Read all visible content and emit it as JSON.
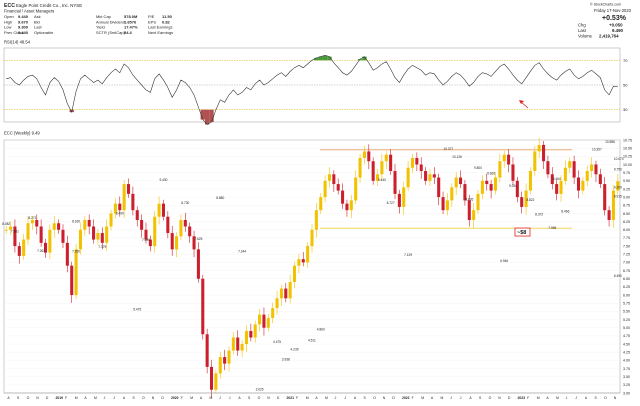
{
  "header": {
    "symbol": "ECC",
    "company": "Eagle Point Credit Co., Inc. NYSE",
    "sector": "Financial / Asset Managers",
    "brand": "© StockCharts.com",
    "date": "Friday 17-Nov-2023",
    "change_pct": "+0.53%",
    "change_label": "Chg",
    "change_value": "+0.050",
    "last_label": "Last",
    "last_value": "9.490",
    "volume_label": "Volume",
    "volume_value": "2,419,764"
  },
  "quote_table": [
    {
      "k1": "Open",
      "v1": "9.440",
      "k2": "Ask",
      "v2": "",
      "k3": "Mkt Cap",
      "v3": "578.0M",
      "k4": "P/E",
      "v4": "11.50"
    },
    {
      "k1": "High",
      "v1": "9.670",
      "k2": "Bid",
      "v2": "",
      "k3": "Annual Dividend",
      "v3": "1.6576",
      "k4": "EPS",
      "v4": "0.82"
    },
    {
      "k1": "Low",
      "v1": "9.300",
      "k2": "Last",
      "v2": "",
      "k3": "Yield",
      "v3": "17.47%",
      "k4": "Last Earnings",
      "v4": ""
    },
    {
      "k1": "Prev Close",
      "v1": "9.440",
      "k2": "Optionable",
      "v2": "",
      "k3": "SCTR (SmlCap)",
      "v3": "54.4",
      "k4": "Next Earnings",
      "v4": ""
    }
  ],
  "rsi_panel": {
    "label": "RSI(14) 48.54",
    "ticks": [
      "70",
      "50",
      "30"
    ]
  },
  "price_panel": {
    "label": "ECC (Weekly) 9.49",
    "target_label": "~$8"
  },
  "colors": {
    "up": "#f2c200",
    "down": "#cc1f2d",
    "resistance": "#e8a060",
    "support": "#f0d040",
    "rsi_line": "#333333",
    "rsi_overbought_fill": "#4a9a3a",
    "rsi_oversold_fill": "#b05050",
    "target": "#e02020"
  },
  "chart_data": {
    "type": "candlestick",
    "price_ylim": [
      3.0,
      10.75
    ],
    "price_ticks": [
      "10.75",
      "10.50",
      "10.25",
      "10.00",
      "9.75",
      "9.50",
      "9.25",
      "9.00",
      "8.75",
      "8.50",
      "8.25",
      "8.00",
      "7.75",
      "7.50",
      "7.25",
      "7.00",
      "6.75",
      "6.50",
      "6.25",
      "6.00",
      "5.75",
      "5.50",
      "5.25",
      "5.00",
      "4.75",
      "4.50",
      "4.25",
      "4.00",
      "3.75",
      "3.50",
      "3.25",
      "3.00"
    ],
    "closes": [
      8.0,
      8.1,
      7.5,
      7.2,
      7.7,
      8.2,
      8.3,
      8.1,
      7.6,
      7.3,
      8.0,
      8.2,
      8.0,
      7.6,
      6.9,
      6.0,
      7.4,
      8.0,
      8.3,
      8.1,
      7.7,
      7.9,
      7.6,
      8.1,
      8.5,
      8.8,
      8.6,
      9.4,
      9.1,
      8.6,
      8.3,
      8.0,
      7.7,
      7.5,
      8.4,
      8.8,
      8.4,
      7.9,
      7.4,
      7.8,
      8.3,
      8.1,
      7.8,
      7.4,
      6.5,
      4.8,
      3.8,
      3.1,
      3.6,
      4.1,
      3.9,
      4.3,
      4.7,
      4.3,
      4.5,
      4.9,
      4.7,
      5.1,
      5.4,
      5.0,
      5.3,
      5.6,
      5.9,
      6.2,
      5.9,
      6.4,
      6.9,
      7.1,
      7.0,
      7.5,
      8.0,
      8.6,
      9.0,
      9.5,
      9.7,
      9.4,
      9.2,
      8.8,
      8.6,
      8.9,
      9.6,
      10.2,
      10.4,
      10.1,
      9.5,
      9.7,
      10.1,
      10.3,
      9.8,
      9.1,
      8.7,
      9.3,
      9.9,
      10.2,
      10.0,
      9.8,
      9.5,
      9.7,
      9.6,
      9.0,
      8.6,
      8.9,
      9.3,
      9.6,
      9.4,
      8.9,
      8.3,
      8.6,
      9.1,
      9.5,
      9.4,
      9.2,
      9.6,
      10.1,
      10.3,
      10.0,
      9.5,
      9.0,
      8.7,
      9.2,
      9.8,
      10.4,
      10.6,
      10.1,
      9.7,
      9.4,
      9.1,
      9.5,
      9.9,
      10.1,
      9.6,
      9.2,
      9.5,
      9.8,
      10.0,
      9.7,
      9.4,
      8.6,
      8.3,
      9.2,
      9.49
    ],
    "annotations": [
      {
        "text": "8.271",
        "x": 6,
        "y": 8.27
      },
      {
        "text": "7.263",
        "x": 8,
        "y": 7.26
      },
      {
        "text": "7.861",
        "x": 2,
        "y": 7.86
      },
      {
        "text": "8.082",
        "x": 0,
        "y": 8.08
      },
      {
        "text": "8.160",
        "x": 16,
        "y": 8.16
      },
      {
        "text": "7.250",
        "x": 16,
        "y": 7.25
      },
      {
        "text": "8.400",
        "x": 26,
        "y": 8.4
      },
      {
        "text": "7.379",
        "x": 22,
        "y": 7.38
      },
      {
        "text": "7.596",
        "x": 32,
        "y": 7.6
      },
      {
        "text": "9.430",
        "x": 36,
        "y": 9.43
      },
      {
        "text": "8.730",
        "x": 41,
        "y": 8.73
      },
      {
        "text": "7.625",
        "x": 44,
        "y": 7.62
      },
      {
        "text": "7.244",
        "x": 54,
        "y": 7.24
      },
      {
        "text": "8.880",
        "x": 49,
        "y": 8.88
      },
      {
        "text": "5.475",
        "x": 30,
        "y": 5.47
      },
      {
        "text": "4.475",
        "x": 62,
        "y": 4.47
      },
      {
        "text": "4.511",
        "x": 70,
        "y": 4.51
      },
      {
        "text": "3.938",
        "x": 64,
        "y": 3.94
      },
      {
        "text": "3.025",
        "x": 58,
        "y": 3.02
      },
      {
        "text": "4.239",
        "x": 66,
        "y": 4.24
      },
      {
        "text": "4.860",
        "x": 72,
        "y": 4.86
      },
      {
        "text": "9.440",
        "x": 86,
        "y": 9.44
      },
      {
        "text": "8.727",
        "x": 88,
        "y": 8.73
      },
      {
        "text": "7.129",
        "x": 92,
        "y": 7.13
      },
      {
        "text": "10.377",
        "x": 101,
        "y": 10.38
      },
      {
        "text": "10.126",
        "x": 103,
        "y": 10.13
      },
      {
        "text": "9.800",
        "x": 108,
        "y": 9.8
      },
      {
        "text": "9.626",
        "x": 111,
        "y": 9.63
      },
      {
        "text": "8.826",
        "x": 106,
        "y": 8.83
      },
      {
        "text": "6.946",
        "x": 114,
        "y": 6.95
      },
      {
        "text": "9.254",
        "x": 116,
        "y": 9.25
      },
      {
        "text": "8.822",
        "x": 120,
        "y": 8.82
      },
      {
        "text": "9.464",
        "x": 126,
        "y": 9.46
      },
      {
        "text": "8.466",
        "x": 128,
        "y": 8.47
      },
      {
        "text": "8.372",
        "x": 122,
        "y": 8.37
      },
      {
        "text": "7.965",
        "x": 125,
        "y": 7.96
      },
      {
        "text": "10.357",
        "x": 135,
        "y": 10.36
      },
      {
        "text": "10.586",
        "x": 138,
        "y": 10.59
      },
      {
        "text": "10.073",
        "x": 149,
        "y": 10.07
      },
      {
        "text": "8.915",
        "x": 144,
        "y": 8.92
      },
      {
        "text": "9.209",
        "x": 151,
        "y": 9.21
      },
      {
        "text": "9.750",
        "x": 160,
        "y": 9.75
      },
      {
        "text": "6.490",
        "x": 158,
        "y": 6.49
      }
    ],
    "resistance_level": 10.45,
    "support_level": 8.05,
    "rsi_ylim": [
      20,
      80
    ],
    "rsi_values": [
      55,
      56,
      52,
      50,
      54,
      57,
      58,
      55,
      48,
      42,
      52,
      56,
      53,
      46,
      35,
      28,
      45,
      55,
      58,
      55,
      52,
      54,
      51,
      56,
      60,
      63,
      60,
      67,
      64,
      58,
      54,
      50,
      46,
      44,
      55,
      59,
      54,
      48,
      40,
      46,
      54,
      52,
      48,
      42,
      32,
      22,
      18,
      20,
      30,
      38,
      36,
      42,
      46,
      42,
      44,
      48,
      46,
      51,
      54,
      50,
      52,
      55,
      58,
      60,
      57,
      61,
      64,
      66,
      64,
      67,
      70,
      72,
      73,
      74,
      73,
      68,
      64,
      60,
      58,
      61,
      66,
      71,
      73,
      68,
      62,
      64,
      67,
      69,
      63,
      56,
      52,
      58,
      63,
      66,
      64,
      62,
      58,
      60,
      59,
      54,
      50,
      53,
      57,
      60,
      58,
      54,
      49,
      52,
      57,
      60,
      59,
      57,
      61,
      65,
      67,
      63,
      58,
      54,
      51,
      56,
      61,
      66,
      68,
      63,
      59,
      56,
      54,
      58,
      61,
      63,
      58,
      55,
      57,
      60,
      62,
      59,
      56,
      46,
      42,
      49,
      48.5
    ],
    "x_ticks": [
      "A",
      "S",
      "O",
      "N",
      "D",
      "2019",
      "F",
      "M",
      "A",
      "M",
      "J",
      "J",
      "A",
      "S",
      "O",
      "N",
      "D",
      "2020",
      "F",
      "M",
      "A",
      "M",
      "J",
      "J",
      "A",
      "S",
      "O",
      "N",
      "D",
      "2021",
      "F",
      "M",
      "A",
      "M",
      "J",
      "J",
      "A",
      "S",
      "O",
      "N",
      "D",
      "2022",
      "F",
      "M",
      "A",
      "M",
      "J",
      "J",
      "A",
      "S",
      "O",
      "N",
      "D",
      "2023",
      "F",
      "M",
      "A",
      "M",
      "J",
      "J",
      "A",
      "S",
      "O",
      "N"
    ]
  }
}
